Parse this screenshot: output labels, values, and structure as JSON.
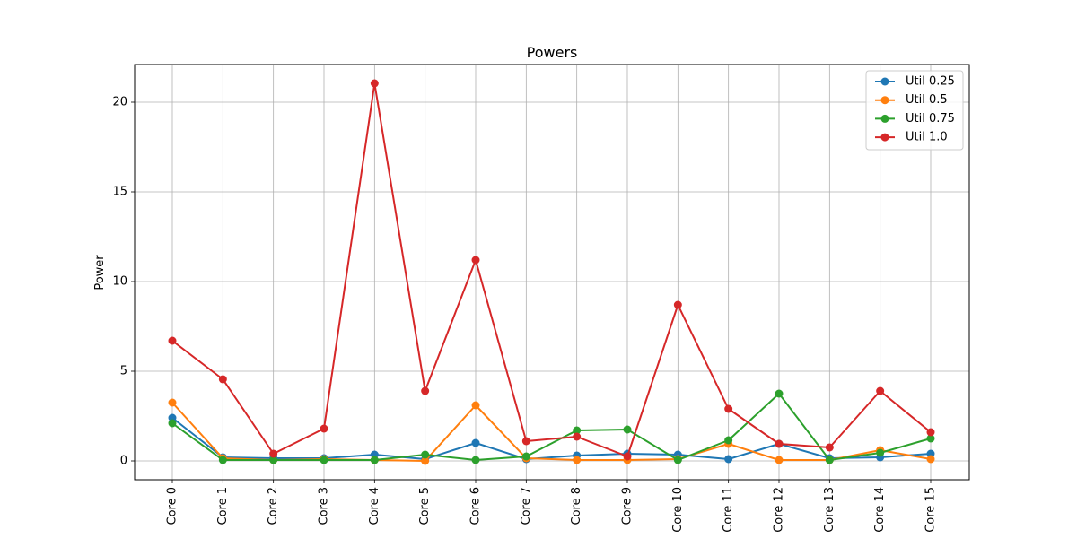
{
  "chart_data": {
    "type": "line",
    "title": "Powers",
    "xlabel": "",
    "ylabel": "Power",
    "categories": [
      "Core 0",
      "Core 1",
      "Core 2",
      "Core 3",
      "Core 4",
      "Core 5",
      "Core 6",
      "Core 7",
      "Core 8",
      "Core 9",
      "Core 10",
      "Core 11",
      "Core 12",
      "Core 13",
      "Core 14",
      "Core 15"
    ],
    "ylim": [
      -1.05,
      22.1
    ],
    "yticks": [
      0,
      5,
      10,
      15,
      20
    ],
    "grid": true,
    "legend_position": "top-right",
    "series": [
      {
        "name": "Util 0.25",
        "color": "#1f77b4",
        "values": [
          2.4,
          0.2,
          0.15,
          0.15,
          0.35,
          0.1,
          1.0,
          0.1,
          0.3,
          0.4,
          0.35,
          0.1,
          0.95,
          0.15,
          0.2,
          0.4
        ]
      },
      {
        "name": "Util 0.5",
        "color": "#ff7f0e",
        "values": [
          3.25,
          0.15,
          0.05,
          0.1,
          0.05,
          0.0,
          3.1,
          0.15,
          0.05,
          0.05,
          0.1,
          0.95,
          0.05,
          0.05,
          0.6,
          0.1
        ]
      },
      {
        "name": "Util 0.75",
        "color": "#2ca02c",
        "values": [
          2.1,
          0.05,
          0.05,
          0.05,
          0.05,
          0.35,
          0.05,
          0.25,
          1.7,
          1.75,
          0.05,
          1.15,
          3.75,
          0.05,
          0.45,
          1.25
        ]
      },
      {
        "name": "Util 1.0",
        "color": "#d62728",
        "values": [
          6.7,
          4.55,
          0.4,
          1.8,
          21.05,
          3.9,
          11.2,
          1.1,
          1.35,
          0.25,
          8.7,
          2.9,
          0.95,
          0.75,
          3.9,
          1.6
        ]
      }
    ]
  }
}
